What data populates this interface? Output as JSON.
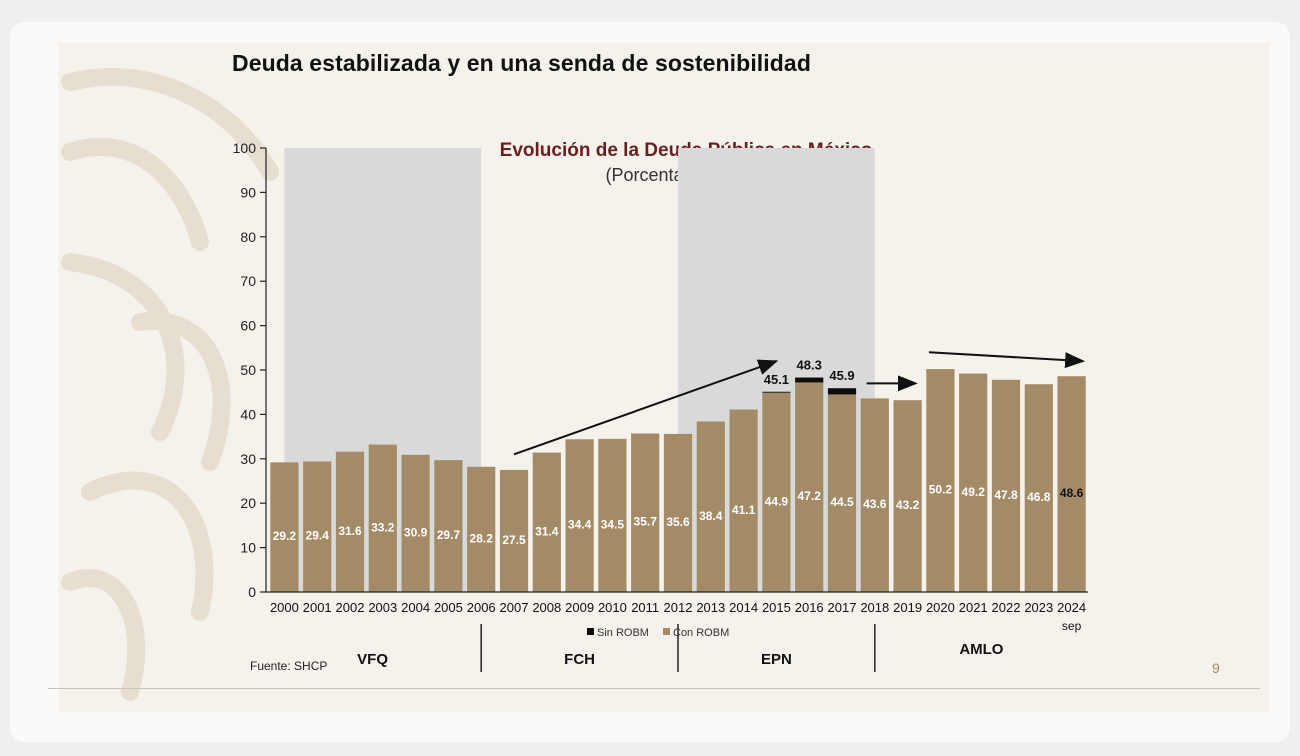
{
  "slide": {
    "title": "Deuda estabilizada y en una senda de sostenibilidad",
    "source": "Fuente: SHCP",
    "page_number": "9"
  },
  "colors": {
    "bar": "#a48b68",
    "bar_top": "#0d0d0d",
    "shade": "#d9d9d9",
    "chart_title": "#6b1e20",
    "page_number": "#9c8f5a"
  },
  "chart_data": {
    "type": "bar",
    "title": "Evolución de la Deuda Pública en México",
    "subtitle": "(Porcentaje del PIB)",
    "xlabel": "",
    "ylabel": "",
    "ylim": [
      0,
      100
    ],
    "yticks": [
      0,
      10,
      20,
      30,
      40,
      50,
      60,
      70,
      80,
      90,
      100
    ],
    "categories": [
      "2000",
      "2001",
      "2002",
      "2003",
      "2004",
      "2005",
      "2006",
      "2007",
      "2008",
      "2009",
      "2010",
      "2011",
      "2012",
      "2013",
      "2014",
      "2015",
      "2016",
      "2017",
      "2018",
      "2019",
      "2020",
      "2021",
      "2022",
      "2023",
      "2024"
    ],
    "last_category_note": "sep",
    "series": [
      {
        "name": "Con ROBM",
        "values": [
          29.2,
          29.4,
          31.6,
          33.2,
          30.9,
          29.7,
          28.2,
          27.5,
          31.4,
          34.4,
          34.5,
          35.7,
          35.6,
          38.4,
          41.1,
          44.9,
          47.2,
          44.5,
          43.6,
          43.2,
          50.2,
          49.2,
          47.8,
          46.8,
          48.6
        ]
      },
      {
        "name": "Sin ROBM",
        "values": [
          null,
          null,
          null,
          null,
          null,
          null,
          null,
          null,
          null,
          null,
          null,
          null,
          null,
          null,
          null,
          45.1,
          48.3,
          45.9,
          null,
          null,
          null,
          null,
          null,
          null,
          null
        ]
      }
    ],
    "data_labels": [
      "29.2",
      "29.4",
      "31.6",
      "33.2",
      "30.9",
      "29.7",
      "28.2",
      "27.5",
      "31.4",
      "34.4",
      "34.5",
      "35.7",
      "35.6",
      "38.4",
      "41.1",
      "44.9",
      "47.2",
      "44.5",
      "43.6",
      "43.2",
      "50.2",
      "49.2",
      "47.8",
      "46.8",
      "48.6"
    ],
    "top_labels": [
      {
        "category": "2015",
        "text": "45.1"
      },
      {
        "category": "2016",
        "text": "48.3"
      },
      {
        "category": "2017",
        "text": "45.9"
      }
    ],
    "legend": [
      {
        "label": "Sin ROBM",
        "color": "#0d0d0d"
      },
      {
        "label": "Con ROBM",
        "color": "#a48b68"
      }
    ],
    "legend_position": "bottom-center",
    "periods": [
      {
        "label": "VFQ",
        "from": "2000",
        "to": "2006",
        "shaded": true
      },
      {
        "label": "FCH",
        "from": "2006",
        "to": "2012",
        "shaded": false
      },
      {
        "label": "EPN",
        "from": "2012",
        "to": "2018",
        "shaded": true
      },
      {
        "label": "AMLO",
        "from": "2018",
        "to": "2024",
        "shaded": false
      }
    ],
    "trend_arrows": [
      {
        "from_category": "2007",
        "from_value": 31,
        "to_category": "2015",
        "to_value": 52
      },
      {
        "from_category": "2018",
        "from_value": 47,
        "to_category": "2019",
        "to_value": 47
      },
      {
        "from_category": "2020",
        "from_value": 54,
        "to_category": "2024",
        "to_value": 52
      }
    ]
  }
}
